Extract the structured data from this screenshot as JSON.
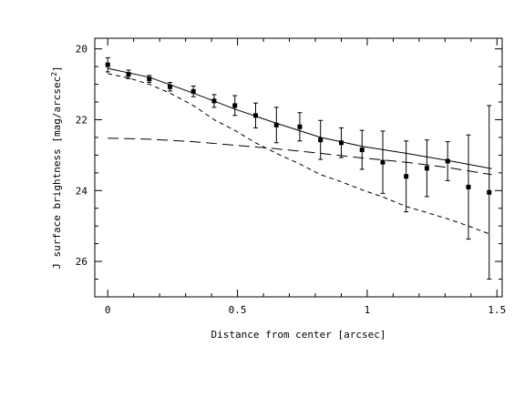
{
  "chart_data": {
    "type": "scatter",
    "xlabel": "Distance from center [arcsec]",
    "ylabel_main": "J surface brightness [mag/arcsec",
    "ylabel_sup": "2",
    "ylabel_tail": "]",
    "xlim": [
      -0.05,
      1.52
    ],
    "ylim": [
      27.0,
      19.7
    ],
    "y_inverted": true,
    "grid": false,
    "xticks": [
      0,
      0.5,
      1,
      1.5
    ],
    "xtick_labels": [
      "0",
      "0.5",
      "1",
      "1.5"
    ],
    "yticks": [
      20,
      22,
      24,
      26
    ],
    "ytick_labels": [
      "20",
      "22",
      "24",
      "26"
    ],
    "data_points": {
      "x": [
        0.0,
        0.08,
        0.16,
        0.24,
        0.33,
        0.41,
        0.49,
        0.57,
        0.65,
        0.74,
        0.82,
        0.9,
        0.98,
        1.06,
        1.15,
        1.23,
        1.31,
        1.39,
        1.47
      ],
      "y": [
        20.45,
        20.72,
        20.85,
        21.07,
        21.2,
        21.47,
        21.6,
        21.88,
        22.15,
        22.2,
        22.57,
        22.65,
        22.85,
        23.2,
        23.6,
        23.37,
        23.17,
        23.9,
        24.05
      ],
      "err": [
        0.2,
        0.12,
        0.1,
        0.12,
        0.15,
        0.18,
        0.28,
        0.35,
        0.5,
        0.4,
        0.55,
        0.42,
        0.55,
        0.88,
        1.0,
        0.8,
        0.55,
        1.47,
        2.45
      ]
    },
    "series": [
      {
        "style": "solid",
        "x": [
          0.0,
          0.16,
          0.33,
          0.49,
          0.65,
          0.82,
          0.98,
          1.15,
          1.31,
          1.48
        ],
        "y": [
          20.55,
          20.8,
          21.25,
          21.7,
          22.1,
          22.5,
          22.75,
          22.95,
          23.15,
          23.38
        ]
      },
      {
        "style": "dashed-short",
        "x": [
          0.0,
          0.08,
          0.16,
          0.24,
          0.33,
          0.41,
          0.49,
          0.57,
          0.65,
          0.74,
          0.82,
          0.9,
          0.98,
          1.06,
          1.15,
          1.23,
          1.31,
          1.39,
          1.48
        ],
        "y": [
          20.7,
          20.82,
          21.0,
          21.25,
          21.6,
          22.0,
          22.3,
          22.65,
          22.95,
          23.25,
          23.55,
          23.75,
          23.98,
          24.18,
          24.45,
          24.62,
          24.8,
          25.0,
          25.25
        ]
      },
      {
        "style": "dashed-long",
        "x": [
          0.0,
          0.16,
          0.33,
          0.49,
          0.65,
          0.82,
          0.98,
          1.15,
          1.31,
          1.48
        ],
        "y": [
          22.52,
          22.55,
          22.62,
          22.72,
          22.82,
          22.95,
          23.08,
          23.2,
          23.35,
          23.55
        ]
      }
    ]
  }
}
